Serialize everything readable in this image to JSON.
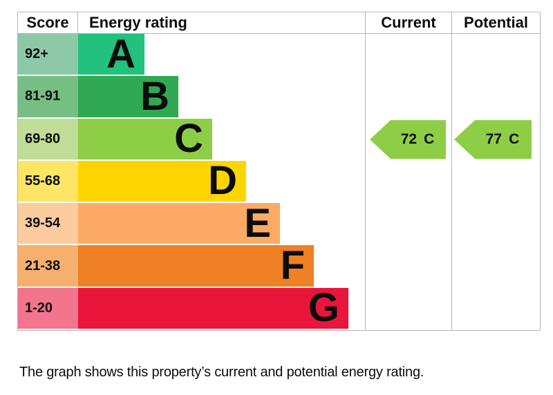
{
  "header": {
    "score": "Score",
    "energy_rating": "Energy rating",
    "current": "Current",
    "potential": "Potential"
  },
  "bands": [
    {
      "score": "92+",
      "letter": "A",
      "color": "#22c17d",
      "tint": "#8dc9a8"
    },
    {
      "score": "81-91",
      "letter": "B",
      "color": "#30a952",
      "tint": "#77be85"
    },
    {
      "score": "69-80",
      "letter": "C",
      "color": "#8dce46",
      "tint": "#c0dd98"
    },
    {
      "score": "55-68",
      "letter": "D",
      "color": "#ffd500",
      "tint": "#ffe566"
    },
    {
      "score": "39-54",
      "letter": "E",
      "color": "#fcaa65",
      "tint": "#fccb9e"
    },
    {
      "score": "21-38",
      "letter": "F",
      "color": "#ef8023",
      "tint": "#f5b06e"
    },
    {
      "score": "1-20",
      "letter": "G",
      "color": "#e9153b",
      "tint": "#f2748d"
    }
  ],
  "current": {
    "value": "72",
    "band": "C",
    "arrow_color": "#8dce46"
  },
  "potential": {
    "value": "77",
    "band": "C",
    "arrow_color": "#8dce46"
  },
  "footer": "The graph shows this property’s current and potential energy rating.",
  "colors": {
    "table_border": "#b4b6b8",
    "text": "#0b0c0c"
  },
  "chart_data": {
    "type": "bar",
    "title": "Energy rating",
    "categories": [
      "A",
      "B",
      "C",
      "D",
      "E",
      "F",
      "G"
    ],
    "score_ranges": [
      "92+",
      "81-91",
      "69-80",
      "55-68",
      "39-54",
      "21-38",
      "1-20"
    ],
    "values": [
      96,
      145,
      194,
      243,
      292,
      341,
      391
    ],
    "band_colors": [
      "#22c17d",
      "#30a952",
      "#8dce46",
      "#ffd500",
      "#fcaa65",
      "#ef8023",
      "#e9153b"
    ],
    "current_rating": {
      "value": 72,
      "band": "C"
    },
    "potential_rating": {
      "value": 77,
      "band": "C"
    },
    "legend_position": "none",
    "grid": false
  }
}
